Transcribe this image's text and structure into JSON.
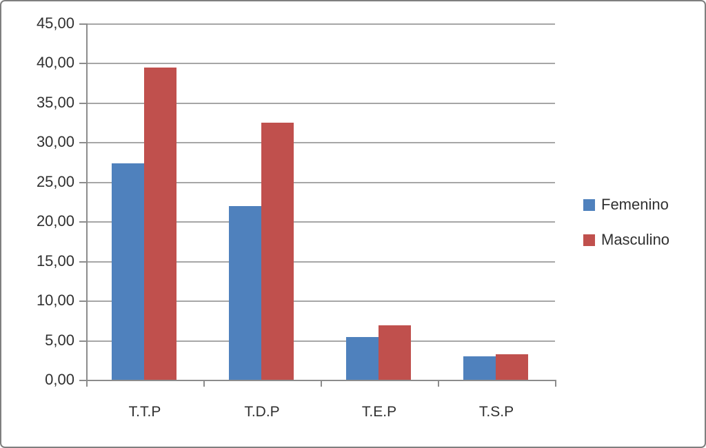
{
  "chart_data": {
    "type": "bar",
    "title": "",
    "categories": [
      "T.T.P",
      "T.D.P",
      "T.E.P",
      "T.S.P"
    ],
    "series": [
      {
        "name": "Femenino",
        "color": "#4F81BD",
        "values": [
          27.3,
          21.9,
          5.4,
          3.0
        ]
      },
      {
        "name": "Masculino",
        "color": "#C0504D",
        "values": [
          39.4,
          32.5,
          6.9,
          3.2
        ]
      }
    ],
    "ylim": [
      0,
      45
    ],
    "ytick_step": 5,
    "ytick_labels": [
      "0,00",
      "5,00",
      "10,00",
      "15,00",
      "20,00",
      "25,00",
      "30,00",
      "35,00",
      "40,00",
      "45,00"
    ],
    "xlabel": "",
    "ylabel": "",
    "grid": true,
    "legend_position": "right",
    "decimal_format": "comma"
  },
  "colors": {
    "background": "#ffffff",
    "frame_border": "#7f7f7f",
    "gridline": "#a6a6a6",
    "axis": "#8c8c8c",
    "text": "#303030",
    "series_femenino": "#4F81BD",
    "series_masculino": "#C0504D"
  }
}
